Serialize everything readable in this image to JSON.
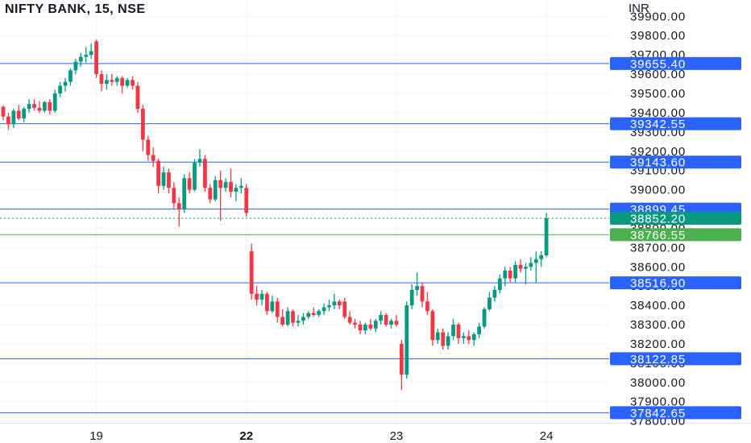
{
  "chart_data": {
    "type": "candlestick",
    "title": "NIFTY BANK, 15, NSE",
    "currency": "INR",
    "ylim": [
      37790,
      39985
    ],
    "y_ticks": [
      39900,
      39800,
      39700,
      39600,
      39500,
      39400,
      39300,
      39200,
      39100,
      39000,
      38900,
      38800,
      38700,
      38600,
      38500,
      38400,
      38300,
      38200,
      38100,
      38000,
      37900,
      37800
    ],
    "x_ticks": [
      {
        "label": "19",
        "index": 18
      },
      {
        "label": "22",
        "index": 47
      },
      {
        "label": "23",
        "index": 76
      },
      {
        "label": "24",
        "index": 105
      }
    ],
    "horizontal_levels": [
      39655.4,
      39342.55,
      39143.6,
      38899.45,
      38516.9,
      38122.85,
      37842.65
    ],
    "current_price": 38852.2,
    "marker_price": 38766.55,
    "colors": {
      "up": "#089981",
      "down": "#f23645",
      "level_line": "#2962ff",
      "level_badge": "#2962ff",
      "current_badge": "#089981",
      "marker_badge": "#4caf50",
      "grid": "#f0f3fa",
      "text": "#131722"
    },
    "candles": [
      {
        "o": 39430,
        "h": 39440,
        "l": 39360,
        "c": 39380
      },
      {
        "o": 39380,
        "h": 39400,
        "l": 39310,
        "c": 39340
      },
      {
        "o": 39340,
        "h": 39420,
        "l": 39320,
        "c": 39410
      },
      {
        "o": 39410,
        "h": 39440,
        "l": 39360,
        "c": 39370
      },
      {
        "o": 39370,
        "h": 39430,
        "l": 39350,
        "c": 39420
      },
      {
        "o": 39420,
        "h": 39470,
        "l": 39400,
        "c": 39445
      },
      {
        "o": 39445,
        "h": 39470,
        "l": 39410,
        "c": 39425
      },
      {
        "o": 39425,
        "h": 39460,
        "l": 39400,
        "c": 39410
      },
      {
        "o": 39410,
        "h": 39460,
        "l": 39400,
        "c": 39455
      },
      {
        "o": 39455,
        "h": 39470,
        "l": 39390,
        "c": 39410
      },
      {
        "o": 39410,
        "h": 39520,
        "l": 39400,
        "c": 39500
      },
      {
        "o": 39500,
        "h": 39560,
        "l": 39480,
        "c": 39540
      },
      {
        "o": 39540,
        "h": 39580,
        "l": 39510,
        "c": 39560
      },
      {
        "o": 39560,
        "h": 39630,
        "l": 39540,
        "c": 39620
      },
      {
        "o": 39620,
        "h": 39680,
        "l": 39600,
        "c": 39665
      },
      {
        "o": 39665,
        "h": 39710,
        "l": 39640,
        "c": 39690
      },
      {
        "o": 39690,
        "h": 39740,
        "l": 39660,
        "c": 39700
      },
      {
        "o": 39700,
        "h": 39760,
        "l": 39680,
        "c": 39720
      },
      {
        "o": 39770,
        "h": 39780,
        "l": 39580,
        "c": 39600
      },
      {
        "o": 39600,
        "h": 39620,
        "l": 39510,
        "c": 39550
      },
      {
        "o": 39550,
        "h": 39600,
        "l": 39520,
        "c": 39570
      },
      {
        "o": 39570,
        "h": 39600,
        "l": 39540,
        "c": 39560
      },
      {
        "o": 39560,
        "h": 39590,
        "l": 39540,
        "c": 39580
      },
      {
        "o": 39580,
        "h": 39590,
        "l": 39500,
        "c": 39540
      },
      {
        "o": 39540,
        "h": 39580,
        "l": 39530,
        "c": 39570
      },
      {
        "o": 39570,
        "h": 39590,
        "l": 39520,
        "c": 39540
      },
      {
        "o": 39540,
        "h": 39560,
        "l": 39400,
        "c": 39420
      },
      {
        "o": 39420,
        "h": 39440,
        "l": 39200,
        "c": 39260
      },
      {
        "o": 39260,
        "h": 39280,
        "l": 39150,
        "c": 39180
      },
      {
        "o": 39180,
        "h": 39220,
        "l": 39120,
        "c": 39150
      },
      {
        "o": 39150,
        "h": 39160,
        "l": 38980,
        "c": 39020
      },
      {
        "o": 39020,
        "h": 39120,
        "l": 39000,
        "c": 39090
      },
      {
        "o": 39090,
        "h": 39110,
        "l": 38980,
        "c": 39010
      },
      {
        "o": 39010,
        "h": 39040,
        "l": 38900,
        "c": 38930
      },
      {
        "o": 38930,
        "h": 38960,
        "l": 38810,
        "c": 38900
      },
      {
        "o": 38900,
        "h": 39080,
        "l": 38880,
        "c": 39060
      },
      {
        "o": 39060,
        "h": 39090,
        "l": 38980,
        "c": 39000
      },
      {
        "o": 39000,
        "h": 39160,
        "l": 38990,
        "c": 39140
      },
      {
        "o": 39140,
        "h": 39210,
        "l": 39120,
        "c": 39160
      },
      {
        "o": 39160,
        "h": 39180,
        "l": 38990,
        "c": 39010
      },
      {
        "o": 39010,
        "h": 39030,
        "l": 38930,
        "c": 38950
      },
      {
        "o": 38950,
        "h": 39070,
        "l": 38940,
        "c": 39050
      },
      {
        "o": 39050,
        "h": 39100,
        "l": 38840,
        "c": 39010
      },
      {
        "o": 39010,
        "h": 39060,
        "l": 38990,
        "c": 39040
      },
      {
        "o": 39040,
        "h": 39110,
        "l": 38960,
        "c": 38990
      },
      {
        "o": 38990,
        "h": 39030,
        "l": 38940,
        "c": 39010
      },
      {
        "o": 39010,
        "h": 39060,
        "l": 38980,
        "c": 39020
      },
      {
        "o": 39010,
        "h": 39030,
        "l": 38860,
        "c": 38880
      },
      {
        "o": 38680,
        "h": 38720,
        "l": 38430,
        "c": 38460
      },
      {
        "o": 38460,
        "h": 38500,
        "l": 38400,
        "c": 38430
      },
      {
        "o": 38430,
        "h": 38480,
        "l": 38400,
        "c": 38460
      },
      {
        "o": 38460,
        "h": 38470,
        "l": 38350,
        "c": 38370
      },
      {
        "o": 38370,
        "h": 38450,
        "l": 38360,
        "c": 38420
      },
      {
        "o": 38420,
        "h": 38440,
        "l": 38310,
        "c": 38340
      },
      {
        "o": 38340,
        "h": 38380,
        "l": 38290,
        "c": 38300
      },
      {
        "o": 38300,
        "h": 38390,
        "l": 38290,
        "c": 38370
      },
      {
        "o": 38370,
        "h": 38380,
        "l": 38290,
        "c": 38310
      },
      {
        "o": 38310,
        "h": 38350,
        "l": 38290,
        "c": 38320
      },
      {
        "o": 38320,
        "h": 38360,
        "l": 38300,
        "c": 38340
      },
      {
        "o": 38340,
        "h": 38370,
        "l": 38330,
        "c": 38360
      },
      {
        "o": 38360,
        "h": 38390,
        "l": 38340,
        "c": 38350
      },
      {
        "o": 38350,
        "h": 38380,
        "l": 38340,
        "c": 38370
      },
      {
        "o": 38370,
        "h": 38410,
        "l": 38350,
        "c": 38390
      },
      {
        "o": 38390,
        "h": 38430,
        "l": 38370,
        "c": 38400
      },
      {
        "o": 38400,
        "h": 38460,
        "l": 38380,
        "c": 38420
      },
      {
        "o": 38420,
        "h": 38430,
        "l": 38380,
        "c": 38400
      },
      {
        "o": 38420,
        "h": 38440,
        "l": 38330,
        "c": 38340
      },
      {
        "o": 38340,
        "h": 38370,
        "l": 38300,
        "c": 38310
      },
      {
        "o": 38310,
        "h": 38330,
        "l": 38280,
        "c": 38300
      },
      {
        "o": 38300,
        "h": 38320,
        "l": 38250,
        "c": 38270
      },
      {
        "o": 38270,
        "h": 38310,
        "l": 38250,
        "c": 38300
      },
      {
        "o": 38300,
        "h": 38330,
        "l": 38270,
        "c": 38280
      },
      {
        "o": 38280,
        "h": 38330,
        "l": 38260,
        "c": 38320
      },
      {
        "o": 38320,
        "h": 38370,
        "l": 38300,
        "c": 38350
      },
      {
        "o": 38350,
        "h": 38360,
        "l": 38290,
        "c": 38300
      },
      {
        "o": 38300,
        "h": 38330,
        "l": 38280,
        "c": 38320
      },
      {
        "o": 38320,
        "h": 38350,
        "l": 38290,
        "c": 38300
      },
      {
        "o": 38200,
        "h": 38220,
        "l": 37960,
        "c": 38040
      },
      {
        "o": 38040,
        "h": 38420,
        "l": 38020,
        "c": 38400
      },
      {
        "o": 38400,
        "h": 38510,
        "l": 38380,
        "c": 38480
      },
      {
        "o": 38480,
        "h": 38570,
        "l": 38450,
        "c": 38500
      },
      {
        "o": 38500,
        "h": 38520,
        "l": 38390,
        "c": 38420
      },
      {
        "o": 38420,
        "h": 38470,
        "l": 38350,
        "c": 38370
      },
      {
        "o": 38370,
        "h": 38380,
        "l": 38190,
        "c": 38220
      },
      {
        "o": 38220,
        "h": 38280,
        "l": 38200,
        "c": 38260
      },
      {
        "o": 38260,
        "h": 38280,
        "l": 38170,
        "c": 38190
      },
      {
        "o": 38190,
        "h": 38260,
        "l": 38170,
        "c": 38240
      },
      {
        "o": 38240,
        "h": 38330,
        "l": 38220,
        "c": 38300
      },
      {
        "o": 38300,
        "h": 38310,
        "l": 38200,
        "c": 38230
      },
      {
        "o": 38230,
        "h": 38260,
        "l": 38200,
        "c": 38240
      },
      {
        "o": 38240,
        "h": 38270,
        "l": 38200,
        "c": 38220
      },
      {
        "o": 38220,
        "h": 38260,
        "l": 38190,
        "c": 38250
      },
      {
        "o": 38250,
        "h": 38310,
        "l": 38230,
        "c": 38290
      },
      {
        "o": 38290,
        "h": 38390,
        "l": 38280,
        "c": 38380
      },
      {
        "o": 38380,
        "h": 38470,
        "l": 38370,
        "c": 38440
      },
      {
        "o": 38440,
        "h": 38500,
        "l": 38420,
        "c": 38480
      },
      {
        "o": 38480,
        "h": 38560,
        "l": 38460,
        "c": 38540
      },
      {
        "o": 38540,
        "h": 38600,
        "l": 38500,
        "c": 38580
      },
      {
        "o": 38580,
        "h": 38600,
        "l": 38520,
        "c": 38540
      },
      {
        "o": 38540,
        "h": 38630,
        "l": 38520,
        "c": 38610
      },
      {
        "o": 38610,
        "h": 38640,
        "l": 38570,
        "c": 38590
      },
      {
        "o": 38590,
        "h": 38620,
        "l": 38510,
        "c": 38600
      },
      {
        "o": 38600,
        "h": 38650,
        "l": 38580,
        "c": 38620
      },
      {
        "o": 38620,
        "h": 38680,
        "l": 38520,
        "c": 38640
      },
      {
        "o": 38640,
        "h": 38680,
        "l": 38600,
        "c": 38660
      },
      {
        "o": 38660,
        "h": 38880,
        "l": 38650,
        "c": 38852
      }
    ]
  }
}
